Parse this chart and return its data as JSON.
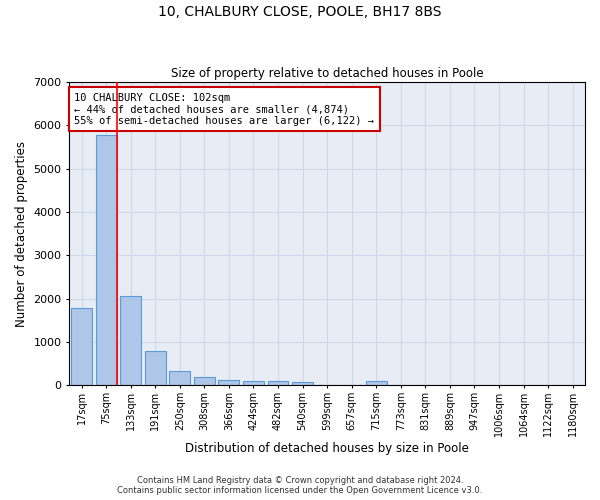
{
  "title1": "10, CHALBURY CLOSE, POOLE, BH17 8BS",
  "title2": "Size of property relative to detached houses in Poole",
  "xlabel": "Distribution of detached houses by size in Poole",
  "ylabel": "Number of detached properties",
  "categories": [
    "17sqm",
    "75sqm",
    "133sqm",
    "191sqm",
    "250sqm",
    "308sqm",
    "366sqm",
    "424sqm",
    "482sqm",
    "540sqm",
    "599sqm",
    "657sqm",
    "715sqm",
    "773sqm",
    "831sqm",
    "889sqm",
    "947sqm",
    "1006sqm",
    "1064sqm",
    "1122sqm",
    "1180sqm"
  ],
  "values": [
    1780,
    5780,
    2060,
    800,
    340,
    200,
    115,
    105,
    95,
    75,
    0,
    0,
    95,
    0,
    0,
    0,
    0,
    0,
    0,
    0,
    0
  ],
  "bar_color": "#aec6e8",
  "bar_edge_color": "#5b9bd5",
  "annotation_text": "10 CHALBURY CLOSE: 102sqm\n← 44% of detached houses are smaller (4,874)\n55% of semi-detached houses are larger (6,122) →",
  "annotation_box_color": "#ffffff",
  "annotation_box_edge": "#cc0000",
  "red_line_color": "#ff0000",
  "red_line_x": 1.43,
  "grid_color": "#d0d8e8",
  "bg_color": "#e8edf5",
  "ylim": [
    0,
    7000
  ],
  "yticks": [
    0,
    1000,
    2000,
    3000,
    4000,
    5000,
    6000,
    7000
  ],
  "footer1": "Contains HM Land Registry data © Crown copyright and database right 2024.",
  "footer2": "Contains public sector information licensed under the Open Government Licence v3.0."
}
